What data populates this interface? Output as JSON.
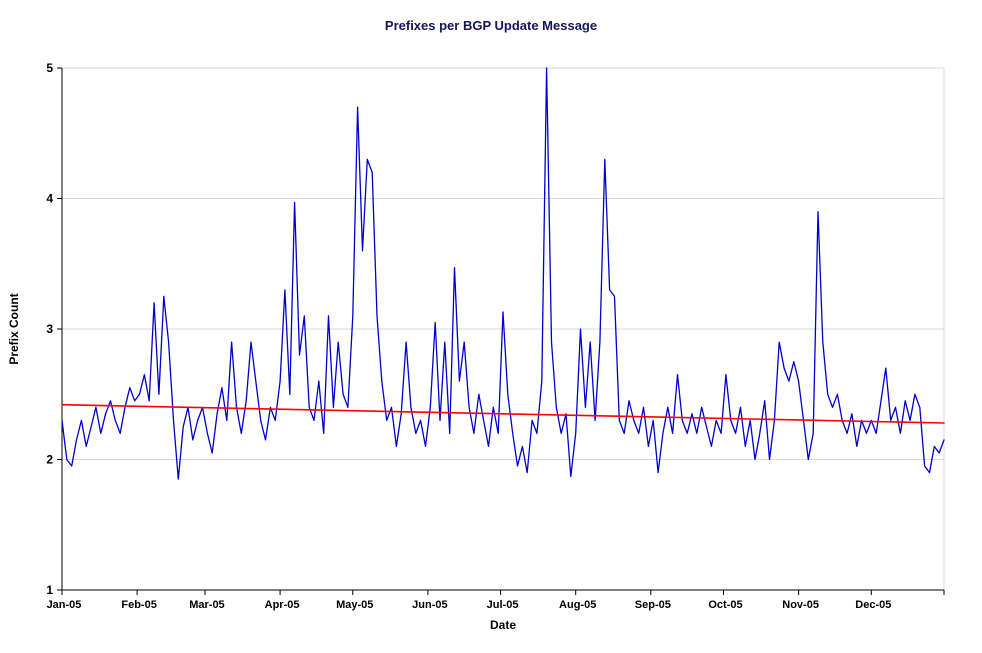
{
  "page": {
    "background": "#ffffff"
  },
  "chart_data": {
    "type": "line",
    "title": "Prefixes per BGP Update Message",
    "xlabel": "Date",
    "ylabel": "Prefix Count",
    "ylim": [
      1,
      5
    ],
    "y_ticks": [
      1,
      2,
      3,
      4,
      5
    ],
    "x_range_days": [
      1,
      365
    ],
    "x_ticks": [
      {
        "label": "Jan-05",
        "day": 1
      },
      {
        "label": "Feb-05",
        "day": 32
      },
      {
        "label": "Mar-05",
        "day": 60
      },
      {
        "label": "Apr-05",
        "day": 91
      },
      {
        "label": "May-05",
        "day": 121
      },
      {
        "label": "Jun-05",
        "day": 152
      },
      {
        "label": "Jul-05",
        "day": 182
      },
      {
        "label": "Aug-05",
        "day": 213
      },
      {
        "label": "Sep-05",
        "day": 244
      },
      {
        "label": "Oct-05",
        "day": 274
      },
      {
        "label": "Nov-05",
        "day": 305
      },
      {
        "label": "Dec-05",
        "day": 335
      }
    ],
    "grid": "horizontal",
    "legend_position": "none",
    "colors": {
      "data_line": "#0000CC",
      "trend_line": "#FF0000",
      "gridline": "#D9D9D9",
      "axis": "#000000",
      "title": "#14145A"
    },
    "series": [
      {
        "name": "Prefixes per update message",
        "color": "#0000CC",
        "x_start": 1,
        "x_step": 2,
        "values": [
          2.3,
          2.0,
          1.95,
          2.15,
          2.3,
          2.1,
          2.25,
          2.4,
          2.2,
          2.35,
          2.45,
          2.3,
          2.2,
          2.4,
          2.55,
          2.45,
          2.5,
          2.65,
          2.45,
          3.2,
          2.5,
          3.25,
          2.9,
          2.3,
          1.85,
          2.25,
          2.4,
          2.15,
          2.3,
          2.4,
          2.2,
          2.05,
          2.35,
          2.55,
          2.3,
          2.9,
          2.4,
          2.2,
          2.45,
          2.9,
          2.6,
          2.3,
          2.15,
          2.4,
          2.3,
          2.6,
          3.3,
          2.5,
          3.97,
          2.8,
          3.1,
          2.4,
          2.3,
          2.6,
          2.2,
          3.1,
          2.4,
          2.9,
          2.5,
          2.4,
          3.1,
          4.7,
          3.6,
          4.3,
          4.2,
          3.1,
          2.6,
          2.3,
          2.4,
          2.1,
          2.35,
          2.9,
          2.4,
          2.2,
          2.3,
          2.1,
          2.4,
          3.05,
          2.3,
          2.9,
          2.2,
          3.47,
          2.6,
          2.9,
          2.4,
          2.2,
          2.5,
          2.3,
          2.1,
          2.4,
          2.2,
          3.13,
          2.5,
          2.2,
          1.95,
          2.1,
          1.9,
          2.3,
          2.2,
          2.6,
          5.0,
          2.9,
          2.4,
          2.2,
          2.35,
          1.87,
          2.2,
          3.0,
          2.4,
          2.9,
          2.3,
          2.9,
          4.3,
          3.3,
          3.25,
          2.3,
          2.2,
          2.45,
          2.3,
          2.2,
          2.4,
          2.1,
          2.3,
          1.9,
          2.2,
          2.4,
          2.2,
          2.65,
          2.3,
          2.2,
          2.35,
          2.2,
          2.4,
          2.25,
          2.1,
          2.3,
          2.2,
          2.65,
          2.3,
          2.2,
          2.4,
          2.1,
          2.3,
          2.0,
          2.2,
          2.45,
          2.0,
          2.3,
          2.9,
          2.7,
          2.6,
          2.75,
          2.6,
          2.3,
          2.0,
          2.2,
          3.9,
          2.9,
          2.5,
          2.4,
          2.5,
          2.3,
          2.2,
          2.35,
          2.1,
          2.3,
          2.2,
          2.3,
          2.2,
          2.45,
          2.7,
          2.3,
          2.4,
          2.2,
          2.45,
          2.3,
          2.5,
          2.4,
          1.95,
          1.9,
          2.1,
          2.05,
          2.15
        ]
      },
      {
        "name": "Linear trend",
        "color": "#FF0000",
        "x": [
          1,
          365
        ],
        "values": [
          2.42,
          2.28
        ]
      }
    ]
  }
}
